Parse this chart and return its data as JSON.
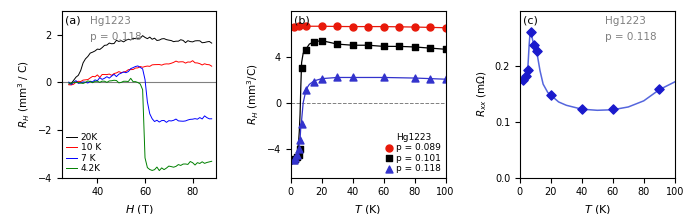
{
  "panel_a": {
    "title": "Hg1223",
    "subtitle": "p = 0.118",
    "xlabel": "H (T)",
    "ylabel": "R_H (mm³ / C)",
    "xlim": [
      25,
      90
    ],
    "ylim": [
      -4,
      3
    ],
    "yticks": [
      -4,
      -2,
      0,
      2
    ],
    "xticks": [
      40,
      60,
      80
    ],
    "curves": {
      "20K": {
        "color": "black",
        "H": [
          28,
          29,
          30,
          31,
          32,
          33,
          34,
          35,
          36,
          37,
          38,
          39,
          40,
          41,
          42,
          43,
          44,
          45,
          46,
          47,
          48,
          49,
          50,
          51,
          52,
          53,
          54,
          55,
          56,
          57,
          58,
          59,
          60,
          61,
          62,
          63,
          64,
          65,
          66,
          67,
          68,
          69,
          70,
          71,
          72,
          73,
          74,
          75,
          76,
          77,
          78,
          79,
          80,
          81,
          82,
          83,
          84,
          85,
          86,
          87,
          88
        ],
        "RH": [
          -0.1,
          -0.05,
          0.05,
          0.15,
          0.3,
          0.5,
          0.75,
          0.95,
          1.1,
          1.2,
          1.28,
          1.33,
          1.38,
          1.45,
          1.52,
          1.57,
          1.6,
          1.63,
          1.65,
          1.68,
          1.7,
          1.72,
          1.74,
          1.75,
          1.78,
          1.8,
          1.82,
          1.83,
          1.85,
          1.86,
          1.87,
          1.88,
          1.88,
          1.87,
          1.86,
          1.85,
          1.84,
          1.83,
          1.82,
          1.81,
          1.8,
          1.78,
          1.77,
          1.76,
          1.76,
          1.75,
          1.74,
          1.74,
          1.74,
          1.73,
          1.73,
          1.72,
          1.72,
          1.71,
          1.7,
          1.7,
          1.69,
          1.68,
          1.68,
          1.67,
          1.66
        ]
      },
      "10K": {
        "color": "red",
        "H": [
          28,
          29,
          30,
          31,
          32,
          33,
          34,
          35,
          36,
          37,
          38,
          39,
          40,
          41,
          42,
          43,
          44,
          45,
          46,
          47,
          48,
          49,
          50,
          51,
          52,
          53,
          54,
          55,
          56,
          57,
          58,
          59,
          60,
          61,
          62,
          63,
          64,
          65,
          66,
          67,
          68,
          69,
          70,
          71,
          72,
          73,
          74,
          75,
          76,
          77,
          78,
          79,
          80,
          81,
          82,
          83,
          84,
          85,
          86,
          87,
          88
        ],
        "RH": [
          -0.1,
          -0.08,
          -0.05,
          -0.02,
          0.0,
          0.03,
          0.06,
          0.09,
          0.13,
          0.17,
          0.2,
          0.23,
          0.26,
          0.28,
          0.3,
          0.32,
          0.33,
          0.34,
          0.35,
          0.37,
          0.38,
          0.4,
          0.42,
          0.45,
          0.47,
          0.5,
          0.52,
          0.55,
          0.58,
          0.6,
          0.63,
          0.65,
          0.67,
          0.69,
          0.71,
          0.72,
          0.73,
          0.74,
          0.75,
          0.76,
          0.77,
          0.78,
          0.79,
          0.8,
          0.82,
          0.83,
          0.84,
          0.85,
          0.86,
          0.86,
          0.85,
          0.84,
          0.83,
          0.82,
          0.8,
          0.78,
          0.76,
          0.74,
          0.72,
          0.71,
          0.7
        ]
      },
      "7K": {
        "color": "blue",
        "H": [
          28,
          29,
          30,
          31,
          32,
          33,
          34,
          35,
          36,
          37,
          38,
          39,
          40,
          41,
          42,
          43,
          44,
          45,
          46,
          47,
          48,
          49,
          50,
          51,
          52,
          53,
          54,
          55,
          56,
          57,
          58,
          59,
          60,
          61,
          62,
          63,
          64,
          65,
          66,
          67,
          68,
          69,
          70,
          71,
          72,
          73,
          74,
          75,
          76,
          77,
          78,
          79,
          80,
          81,
          82,
          83,
          84,
          85,
          86,
          87,
          88
        ],
        "RH": [
          -0.05,
          -0.04,
          -0.03,
          -0.02,
          -0.01,
          0.0,
          0.01,
          0.02,
          0.03,
          0.04,
          0.06,
          0.08,
          0.1,
          0.13,
          0.15,
          0.18,
          0.2,
          0.22,
          0.25,
          0.28,
          0.3,
          0.33,
          0.37,
          0.4,
          0.45,
          0.5,
          0.55,
          0.6,
          0.65,
          0.67,
          0.65,
          0.55,
          0.1,
          -0.8,
          -1.4,
          -1.55,
          -1.6,
          -1.62,
          -1.63,
          -1.64,
          -1.65,
          -1.65,
          -1.65,
          -1.64,
          -1.63,
          -1.62,
          -1.61,
          -1.6,
          -1.6,
          -1.59,
          -1.58,
          -1.57,
          -1.56,
          -1.56,
          -1.55,
          -1.54,
          -1.53,
          -1.52,
          -1.51,
          -1.5,
          -1.49
        ]
      },
      "4.2K": {
        "color": "green",
        "H": [
          28,
          29,
          30,
          31,
          32,
          33,
          34,
          35,
          36,
          37,
          38,
          39,
          40,
          41,
          42,
          43,
          44,
          45,
          46,
          47,
          48,
          49,
          50,
          51,
          52,
          53,
          54,
          55,
          56,
          57,
          58,
          59,
          60,
          61,
          62,
          63,
          64,
          65,
          66,
          67,
          68,
          69,
          70,
          71,
          72,
          73,
          74,
          75,
          76,
          77,
          78,
          79,
          80,
          81,
          82,
          83,
          84,
          85,
          86,
          87,
          88
        ],
        "RH": [
          -0.05,
          -0.04,
          -0.03,
          -0.02,
          -0.01,
          0.0,
          0.01,
          0.01,
          0.02,
          0.02,
          0.03,
          0.03,
          0.03,
          0.03,
          0.04,
          0.04,
          0.04,
          0.04,
          0.04,
          0.04,
          0.03,
          0.03,
          0.03,
          0.02,
          0.02,
          0.01,
          0.01,
          0.0,
          -0.02,
          -0.05,
          -0.1,
          -0.3,
          -3.2,
          -3.55,
          -3.65,
          -3.68,
          -3.67,
          -3.65,
          -3.63,
          -3.62,
          -3.6,
          -3.58,
          -3.56,
          -3.54,
          -3.52,
          -3.5,
          -3.48,
          -3.46,
          -3.44,
          -3.43,
          -3.42,
          -3.41,
          -3.4,
          -3.39,
          -3.38,
          -3.38,
          -3.37,
          -3.37,
          -3.36,
          -3.36,
          -3.35
        ]
      }
    }
  },
  "panel_b": {
    "xlabel": "T (K)",
    "ylabel": "R_H (mm³/C)",
    "xlim": [
      0,
      100
    ],
    "ylim": [
      -6.5,
      8
    ],
    "yticks": [
      -4,
      0,
      4
    ],
    "xticks": [
      0,
      20,
      40,
      60,
      80,
      100
    ],
    "series": {
      "p089": {
        "color": "#e8190a",
        "marker": "o",
        "T": [
          2,
          5,
          10,
          20,
          30,
          40,
          50,
          60,
          70,
          80,
          90,
          100
        ],
        "RH": [
          6.6,
          6.65,
          6.65,
          6.65,
          6.63,
          6.62,
          6.62,
          6.62,
          6.6,
          6.58,
          6.55,
          6.52
        ],
        "line_T": [
          1,
          2,
          5,
          10,
          20,
          30,
          40,
          50,
          60,
          70,
          80,
          90,
          100
        ],
        "line_RH": [
          6.58,
          6.6,
          6.65,
          6.65,
          6.65,
          6.63,
          6.62,
          6.62,
          6.62,
          6.6,
          6.58,
          6.55,
          6.52
        ]
      },
      "p101": {
        "color": "black",
        "marker": "s",
        "T": [
          2,
          3,
          4,
          5,
          6,
          7,
          10,
          15,
          20,
          30,
          40,
          50,
          60,
          70,
          80,
          90,
          100
        ],
        "RH": [
          -5.0,
          -4.9,
          -4.7,
          -4.5,
          -4.0,
          3.0,
          4.6,
          5.3,
          5.4,
          5.1,
          5.0,
          5.0,
          4.9,
          4.9,
          4.85,
          4.75,
          4.65
        ],
        "line_T": [
          1,
          1.5,
          2,
          2.5,
          3,
          3.5,
          4,
          4.5,
          5,
          5.5,
          6,
          6.5,
          7,
          8,
          10,
          12,
          15,
          20,
          30,
          40,
          50,
          60,
          70,
          80,
          90,
          100
        ],
        "line_RH": [
          -5.3,
          -5.2,
          -5.0,
          -4.9,
          -4.8,
          -4.6,
          -4.4,
          -4.0,
          -3.5,
          -2.5,
          -1.0,
          1.5,
          3.5,
          4.3,
          4.7,
          5.1,
          5.3,
          5.4,
          5.1,
          5.0,
          5.0,
          4.9,
          4.9,
          4.85,
          4.75,
          4.65
        ]
      },
      "p118": {
        "color": "#3333cc",
        "marker": "^",
        "T": [
          2,
          3,
          4,
          5,
          6,
          7,
          10,
          15,
          20,
          30,
          40,
          60,
          80,
          90,
          100
        ],
        "RH": [
          -5.0,
          -4.8,
          -4.5,
          -4.0,
          -3.2,
          -1.8,
          1.1,
          1.8,
          2.1,
          2.2,
          2.2,
          2.2,
          2.15,
          2.1,
          2.05
        ],
        "line_T": [
          1,
          1.5,
          2,
          2.5,
          3,
          3.5,
          4,
          4.5,
          5,
          5.5,
          6,
          6.5,
          7,
          8,
          10,
          12,
          15,
          20,
          30,
          40,
          60,
          80,
          90,
          100
        ],
        "line_RH": [
          -5.3,
          -5.2,
          -5.0,
          -4.9,
          -4.8,
          -4.6,
          -4.5,
          -4.3,
          -4.0,
          -3.5,
          -3.2,
          -2.0,
          -1.5,
          0.0,
          1.2,
          1.6,
          1.9,
          2.1,
          2.2,
          2.2,
          2.2,
          2.15,
          2.1,
          2.05
        ]
      }
    }
  },
  "panel_c": {
    "title": "Hg1223",
    "subtitle": "p = 0.118",
    "xlabel": "T (K)",
    "ylabel": "R_{xx} (mΩ)",
    "xlim": [
      0,
      100
    ],
    "ylim": [
      0,
      0.3
    ],
    "yticks": [
      0.0,
      0.1,
      0.2
    ],
    "xticks": [
      0,
      20,
      40,
      60,
      80,
      100
    ],
    "T_data": [
      2,
      4,
      5,
      7,
      9,
      11,
      20,
      40,
      60,
      90
    ],
    "Rxx_data": [
      0.175,
      0.182,
      0.193,
      0.262,
      0.238,
      0.228,
      0.148,
      0.123,
      0.124,
      0.16
    ],
    "line_T": [
      1,
      2,
      3,
      4,
      5,
      5.5,
      6,
      6.5,
      7,
      7.5,
      8,
      9,
      10,
      11,
      13,
      15,
      18,
      20,
      25,
      30,
      40,
      50,
      60,
      70,
      80,
      90,
      100
    ],
    "line_Rxx": [
      0.173,
      0.175,
      0.177,
      0.18,
      0.192,
      0.215,
      0.24,
      0.258,
      0.263,
      0.258,
      0.25,
      0.238,
      0.23,
      0.224,
      0.192,
      0.168,
      0.153,
      0.148,
      0.136,
      0.13,
      0.123,
      0.121,
      0.122,
      0.127,
      0.138,
      0.158,
      0.172
    ],
    "dot_color": "#1a1acc",
    "line_color": "#5566dd"
  }
}
